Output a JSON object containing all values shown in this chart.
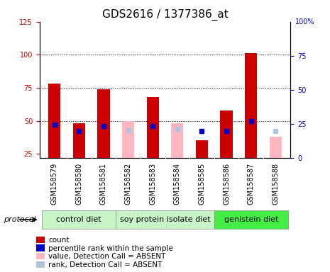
{
  "title": "GDS2616 / 1377386_at",
  "samples": [
    "GSM158579",
    "GSM158580",
    "GSM158581",
    "GSM158582",
    "GSM158583",
    "GSM158584",
    "GSM158585",
    "GSM158586",
    "GSM158587",
    "GSM158588"
  ],
  "count_values": [
    78,
    48,
    74,
    null,
    68,
    null,
    35,
    58,
    101,
    null
  ],
  "rank_values": [
    47,
    42,
    46,
    null,
    46,
    null,
    42,
    42,
    50,
    null
  ],
  "absent_value_values": [
    null,
    null,
    null,
    50,
    null,
    48,
    null,
    null,
    null,
    38
  ],
  "absent_rank_values": [
    null,
    null,
    null,
    43,
    null,
    44,
    null,
    null,
    null,
    42
  ],
  "group_info": [
    {
      "label": "control diet",
      "cols": [
        0,
        1,
        2
      ],
      "color": "#c8f5c8"
    },
    {
      "label": "soy protein isolate diet",
      "cols": [
        3,
        4,
        5,
        6
      ],
      "color": "#c8f5c8"
    },
    {
      "label": "genistein diet",
      "cols": [
        7,
        8,
        9
      ],
      "color": "#44ee44"
    }
  ],
  "ylim_left": [
    22,
    125
  ],
  "ylim_right": [
    0,
    100
  ],
  "yticks_left": [
    25,
    50,
    75,
    100,
    125
  ],
  "yticks_right": [
    0,
    25,
    50,
    75
  ],
  "bar_width": 0.5,
  "count_color": "#CC0000",
  "rank_color": "#0000CC",
  "absent_value_color": "#FFB6C1",
  "absent_rank_color": "#B0C4DE",
  "grid_color": "#000000",
  "background_color": "#ffffff",
  "xtick_bg_color": "#d0d0d0",
  "left_axis_color": "#CC0000",
  "right_axis_color": "#0000CC",
  "title_fontsize": 11,
  "tick_fontsize": 7,
  "group_fontsize": 8,
  "legend_fontsize": 7.5
}
